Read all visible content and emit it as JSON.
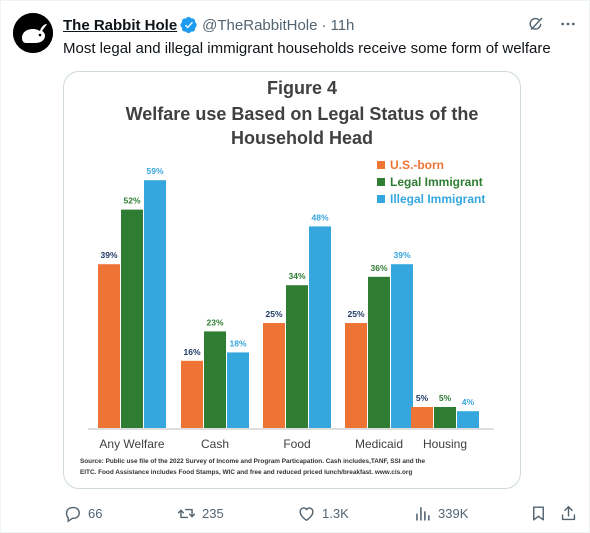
{
  "tweet": {
    "display_name": "The Rabbit Hole",
    "handle": "@TheRabbitHole",
    "separator": "·",
    "time": "11h",
    "text": "Most legal and illegal immigrant households receive some form of welfare"
  },
  "icons": {
    "avatar": "rabbit-logo",
    "verified": "verified-badge-icon",
    "grok": "grok-icon",
    "more": "more-icon",
    "reply": "reply-icon",
    "retweet": "retweet-icon",
    "like": "like-icon",
    "views": "views-icon",
    "bookmark": "bookmark-icon",
    "share": "share-icon"
  },
  "colors": {
    "verified": "#1d9bf0",
    "us_born": "#ed7434",
    "legal": "#2f7d32",
    "illegal": "#36a6de"
  },
  "actions": {
    "replies": "66",
    "retweets": "235",
    "likes": "1.3K",
    "views": "339K"
  },
  "chart_data": {
    "type": "bar",
    "title": "Figure 4",
    "subtitle_lines": [
      "Welfare use Based on Legal Status of the",
      "Household Head"
    ],
    "categories": [
      "Any Welfare",
      "Cash",
      "Food",
      "Medicaid",
      "Housing"
    ],
    "series": [
      {
        "name": "U.S.-born",
        "values": [
          39,
          16,
          25,
          25,
          5
        ],
        "labels": [
          "39%",
          "16%",
          "25%",
          "25%",
          "5%"
        ]
      },
      {
        "name": "Legal Immigrant",
        "values": [
          52,
          23,
          34,
          36,
          5
        ],
        "labels": [
          "52%",
          "23%",
          "34%",
          "36%",
          "5%"
        ]
      },
      {
        "name": "Illegal Immigrant",
        "values": [
          59,
          18,
          48,
          39,
          4
        ],
        "labels": [
          "59%",
          "18%",
          "48%",
          "39%",
          "4%"
        ]
      }
    ],
    "ylim": [
      0,
      60
    ],
    "legend": "top-right",
    "grid": false,
    "source_lines": [
      "Source: Public use file of the 2022 Survey of Income and Program Particapation.  Cash includes,TANF, SSI and the",
      "EITC.  Food Assistance includes Food Stamps, WIC and free and reduced priced lunch/breakfast.  www.cis.org"
    ]
  }
}
